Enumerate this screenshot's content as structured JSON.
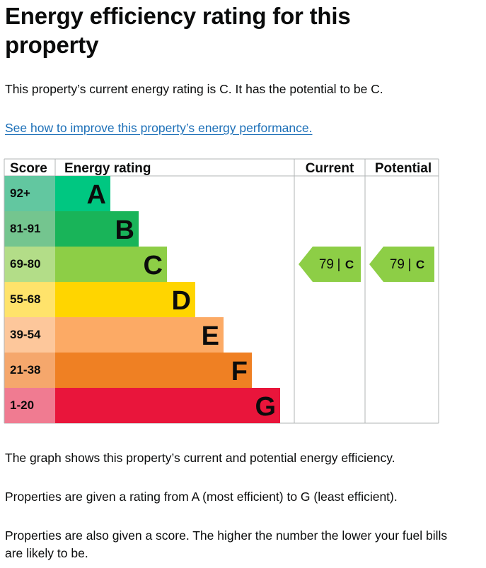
{
  "page": {
    "title": "Energy efficiency rating for this property",
    "intro": "This property’s current energy rating is C. It has the potential to be C.",
    "improve_link": "See how to improve this property’s energy performance.",
    "para_graph": "The graph shows this property’s current and potential energy efficiency.",
    "para_rating": "Properties are given a rating from A (most efficient) to G (least efficient).",
    "para_score": "Properties are also given a score. The higher the number the lower your fuel bills are likely to be."
  },
  "chart_data": {
    "type": "bar",
    "headers": {
      "score": "Score",
      "rating": "Energy rating",
      "current": "Current",
      "potential": "Potential"
    },
    "bands": [
      {
        "score": "92+",
        "letter": "A",
        "color": "#00c781",
        "score_color": "#62c7a0"
      },
      {
        "score": "81-91",
        "letter": "B",
        "color": "#19b459",
        "score_color": "#74c58f"
      },
      {
        "score": "69-80",
        "letter": "C",
        "color": "#8dce46",
        "score_color": "#b3dd88"
      },
      {
        "score": "55-68",
        "letter": "D",
        "color": "#ffd500",
        "score_color": "#ffe36b"
      },
      {
        "score": "39-54",
        "letter": "E",
        "color": "#fcaa65",
        "score_color": "#fdc79b"
      },
      {
        "score": "21-38",
        "letter": "F",
        "color": "#ef8023",
        "score_color": "#f5a76c"
      },
      {
        "score": "1-20",
        "letter": "G",
        "color": "#e9153b",
        "score_color": "#f07b91"
      }
    ],
    "current": {
      "value": 79,
      "letter": "C",
      "color": "#8dce46"
    },
    "potential": {
      "value": 79,
      "letter": "C",
      "color": "#8dce46"
    }
  }
}
